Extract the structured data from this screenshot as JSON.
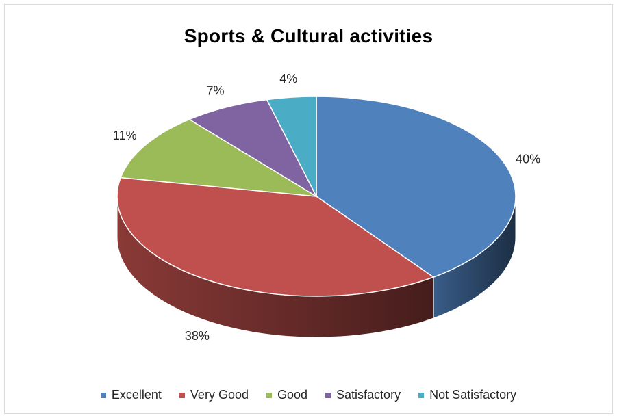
{
  "chart_data": {
    "type": "pie",
    "title": "Sports & Cultural activities",
    "categories": [
      "Excellent",
      "Very Good",
      "Good",
      "Satisfactory",
      "Not Satisfactory"
    ],
    "values": [
      40,
      38,
      11,
      7,
      4
    ],
    "data_labels": [
      "40%",
      "38%",
      "11%",
      "7%",
      "4%"
    ],
    "colors": [
      "#4f81bd",
      "#c0504d",
      "#9bbb59",
      "#8064a2",
      "#4bacc6"
    ],
    "style": "3d",
    "legend_position": "bottom"
  }
}
